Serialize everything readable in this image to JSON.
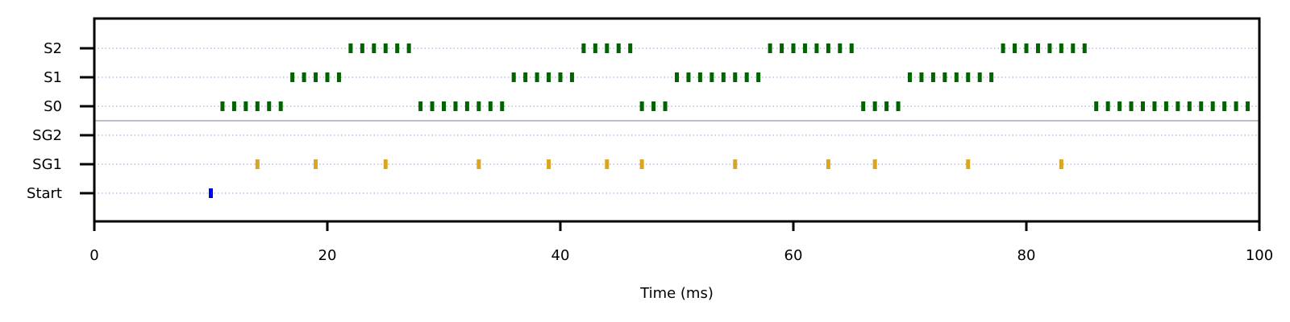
{
  "chart_data": {
    "type": "scatter",
    "subtype": "raster",
    "title": "",
    "xlabel": "Time (ms)",
    "ylabel": "",
    "xlim": [
      0,
      100
    ],
    "x_ticks": [
      0,
      20,
      40,
      60,
      80,
      100
    ],
    "x_tick_labels": [
      "0",
      "20",
      "40",
      "60",
      "80",
      "100"
    ],
    "categories": [
      "S2",
      "S1",
      "S0",
      "SG2",
      "SG1",
      "Start"
    ],
    "grid": "horizontal dotted",
    "separator_between": [
      "S0",
      "SG2"
    ],
    "series": [
      {
        "category": "S2",
        "color": "#006400",
        "x": [
          22,
          23,
          24,
          25,
          26,
          27,
          42,
          43,
          44,
          45,
          46,
          58,
          59,
          60,
          61,
          62,
          63,
          64,
          65,
          78,
          79,
          80,
          81,
          82,
          83,
          84,
          85
        ]
      },
      {
        "category": "S1",
        "color": "#006400",
        "x": [
          17,
          18,
          19,
          20,
          21,
          36,
          37,
          38,
          39,
          40,
          41,
          50,
          51,
          52,
          53,
          54,
          55,
          56,
          57,
          70,
          71,
          72,
          73,
          74,
          75,
          76,
          77
        ]
      },
      {
        "category": "S0",
        "color": "#006400",
        "x": [
          11,
          12,
          13,
          14,
          15,
          16,
          28,
          29,
          30,
          31,
          32,
          33,
          34,
          35,
          47,
          48,
          49,
          66,
          67,
          68,
          69,
          86,
          87,
          88,
          89,
          90,
          91,
          92,
          93,
          94,
          95,
          96,
          97,
          98,
          99
        ]
      },
      {
        "category": "SG2",
        "color": "#DAA520",
        "x": []
      },
      {
        "category": "SG1",
        "color": "#DAA520",
        "x": [
          14,
          19,
          25,
          33,
          39,
          44,
          47,
          55,
          63,
          67,
          75,
          83
        ]
      },
      {
        "category": "Start",
        "color": "#0000FF",
        "x": [
          10
        ]
      }
    ]
  }
}
